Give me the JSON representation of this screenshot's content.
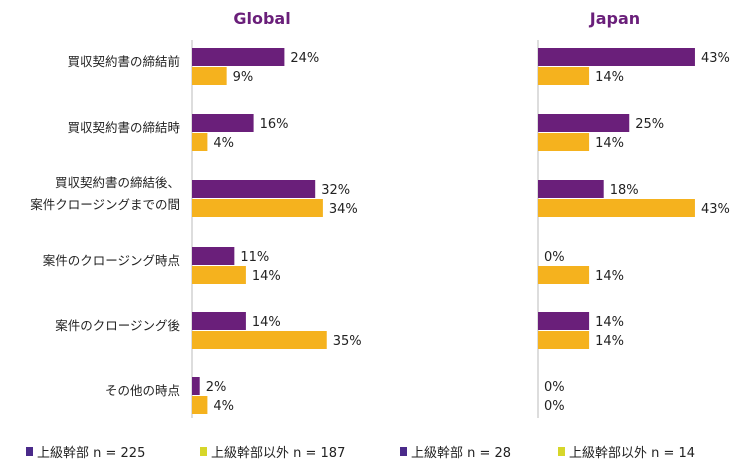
{
  "chart_data": [
    {
      "type": "bar",
      "orientation": "horizontal",
      "title": "Global",
      "categories": [
        "買収契約書の締結前",
        "買収契約書の締結時",
        "買収契約書の締結後、\n案件クロージングまでの間",
        "案件のクロージング時点",
        "案件のクロージング後",
        "その他の時点"
      ],
      "series": [
        {
          "name": "上級幹部 n = 225",
          "color": "#6a1f7a",
          "values": [
            24,
            16,
            32,
            11,
            14,
            2
          ]
        },
        {
          "name": "上級幹部以外 n = 187",
          "color": "#f5b21e",
          "values": [
            9,
            4,
            34,
            14,
            35,
            4
          ]
        }
      ],
      "unit": "%"
    },
    {
      "type": "bar",
      "orientation": "horizontal",
      "title": "Japan",
      "categories": [
        "買収契約書の締結前",
        "買収契約書の締結時",
        "買収契約書の締結後、\n案件クロージングまでの間",
        "案件のクロージング時点",
        "案件のクロージング後",
        "その他の時点"
      ],
      "series": [
        {
          "name": "上級幹部 n = 28",
          "color": "#6a1f7a",
          "values": [
            43,
            25,
            18,
            0,
            14,
            0
          ]
        },
        {
          "name": "上級幹部以外 n = 14",
          "color": "#f5b21e",
          "values": [
            14,
            14,
            43,
            14,
            14,
            0
          ]
        }
      ],
      "unit": "%"
    }
  ],
  "legend_colors": {
    "purple": "#4a2a8a",
    "yellow": "#d6d62a"
  }
}
